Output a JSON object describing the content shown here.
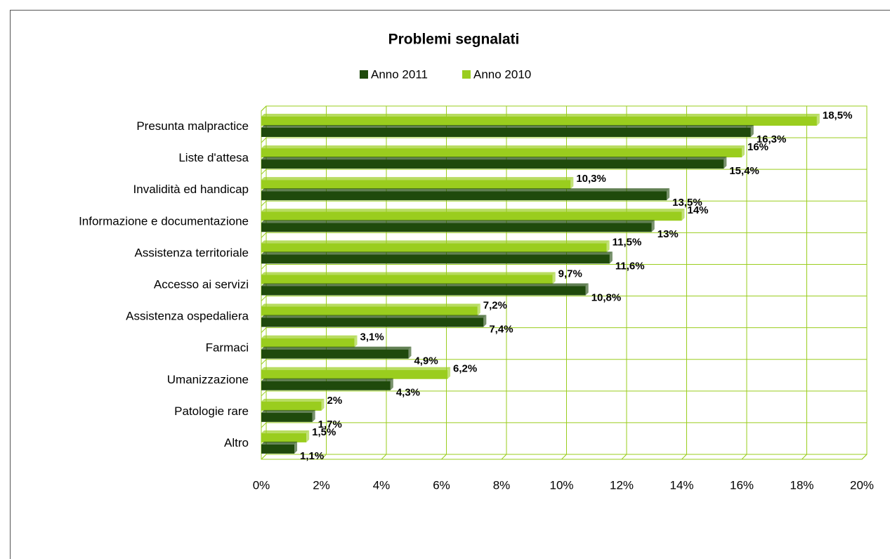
{
  "chart_data": {
    "type": "bar",
    "orientation": "horizontal",
    "title": "Problemi segnalati",
    "categories": [
      "Presunta malpractice",
      "Liste d'attesa",
      "Invalidità ed handicap",
      "Informazione e documentazione",
      "Assistenza territoriale",
      "Accesso ai servizi",
      "Assistenza ospedaliera",
      "Farmaci",
      "Umanizzazione",
      "Patologie rare",
      "Altro"
    ],
    "series": [
      {
        "name": "Anno 2011",
        "color": "#1f4a0c",
        "values": [
          16.3,
          15.4,
          13.5,
          13,
          11.6,
          10.8,
          7.4,
          4.9,
          4.3,
          1.7,
          1.1
        ],
        "value_labels": [
          "16,3%",
          "15,4%",
          "13,5%",
          "13%",
          "11,6%",
          "10,8%",
          "7,4%",
          "4,9%",
          "4,3%",
          "1,7%",
          "1,1%"
        ]
      },
      {
        "name": "Anno 2010",
        "color": "#9acd1e",
        "values": [
          18.5,
          16,
          10.3,
          14,
          11.5,
          9.7,
          7.2,
          3.1,
          6.2,
          2,
          1.5
        ],
        "value_labels": [
          "18,5%",
          "16%",
          "10,3%",
          "14%",
          "11,5%",
          "9,7%",
          "7,2%",
          "3,1%",
          "6,2%",
          "2%",
          "1,5%"
        ]
      }
    ],
    "xlim": [
      0,
      20
    ],
    "xticks": [
      {
        "value": 0,
        "label": "0%"
      },
      {
        "value": 2,
        "label": "2%"
      },
      {
        "value": 4,
        "label": "4%"
      },
      {
        "value": 6,
        "label": "6%"
      },
      {
        "value": 8,
        "label": "8%"
      },
      {
        "value": 10,
        "label": "10%"
      },
      {
        "value": 12,
        "label": "12%"
      },
      {
        "value": 14,
        "label": "14%"
      },
      {
        "value": 16,
        "label": "16%"
      },
      {
        "value": 18,
        "label": "18%"
      },
      {
        "value": 20,
        "label": "20%"
      }
    ],
    "grid": true,
    "grid_color": "#9acd1e",
    "legend": "top"
  }
}
